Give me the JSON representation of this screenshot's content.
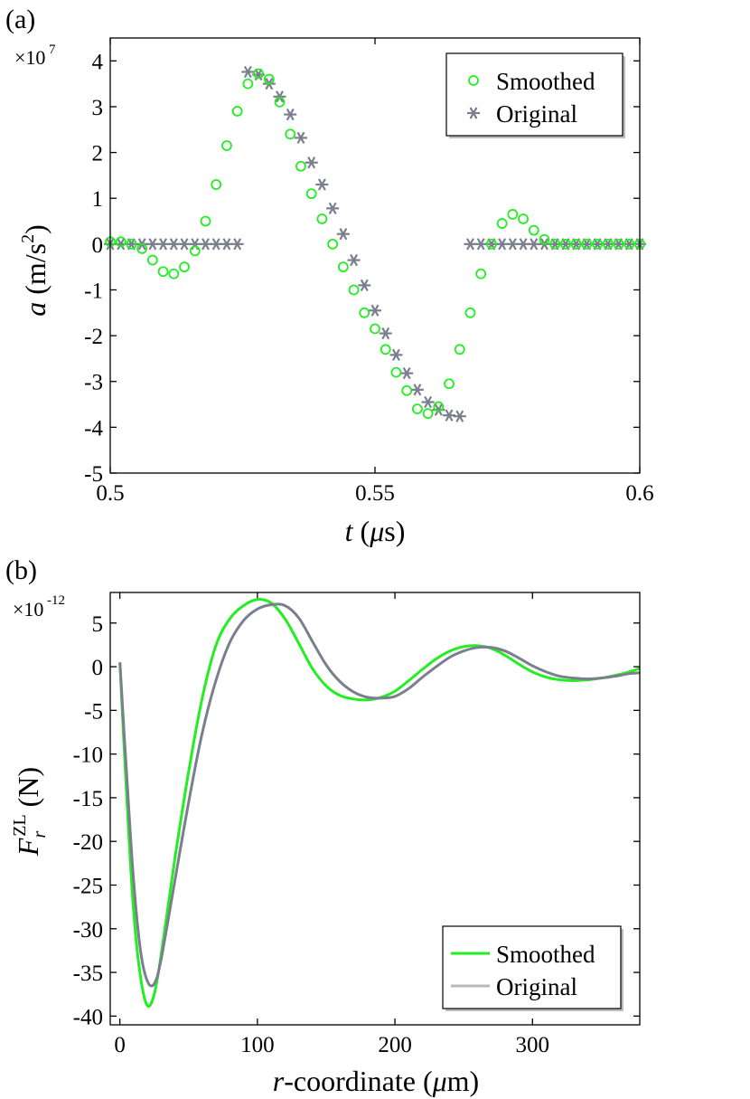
{
  "colors": {
    "smoothed": "#22ee22",
    "original": "#7a7f8e",
    "legend_original_line": "#b8b8b8",
    "axis": "#000000",
    "legend_shadow": "#bdbdbd"
  },
  "chart_data": [
    {
      "panel_label": "(a)",
      "type": "scatter",
      "title": "",
      "exponent_base": "×10",
      "exponent_power": "7",
      "xlabel": {
        "var": "t",
        "rest": " (",
        "mu": "μ",
        "unit": "s)"
      },
      "ylabel": {
        "var": "a",
        "unit_open": " (m/s",
        "power": "2",
        "unit_close": ")"
      },
      "xlim": [
        0.5,
        0.6
      ],
      "ylim": [
        -5,
        4.5
      ],
      "xticks": [
        0.5,
        0.55,
        0.6
      ],
      "xtick_labels": [
        "0.5",
        "0.55",
        "0.6"
      ],
      "yticks": [
        4,
        3,
        2,
        1,
        0,
        -1,
        -2,
        -3,
        -4,
        -5
      ],
      "ytick_labels": [
        "4",
        "3",
        "2",
        "1",
        "0",
        "-1",
        "-2",
        "-3",
        "-4",
        "-5"
      ],
      "legend_position": "top-right",
      "series": [
        {
          "name": "Smoothed",
          "marker": "circle",
          "x": [
            0.5,
            0.502,
            0.504,
            0.506,
            0.508,
            0.51,
            0.512,
            0.514,
            0.516,
            0.518,
            0.52,
            0.522,
            0.524,
            0.526,
            0.528,
            0.53,
            0.532,
            0.534,
            0.536,
            0.538,
            0.54,
            0.542,
            0.544,
            0.546,
            0.548,
            0.55,
            0.552,
            0.554,
            0.556,
            0.558,
            0.56,
            0.562,
            0.564,
            0.566,
            0.568,
            0.57,
            0.572,
            0.574,
            0.576,
            0.578,
            0.58,
            0.582,
            0.584,
            0.586,
            0.588,
            0.59,
            0.592,
            0.594,
            0.596,
            0.598,
            0.6
          ],
          "y": [
            0.05,
            0.05,
            0.0,
            -0.1,
            -0.35,
            -0.6,
            -0.65,
            -0.5,
            -0.15,
            0.5,
            1.3,
            2.15,
            2.9,
            3.5,
            3.72,
            3.6,
            3.1,
            2.4,
            1.7,
            1.1,
            0.55,
            0.0,
            -0.5,
            -1.0,
            -1.5,
            -1.85,
            -2.3,
            -2.8,
            -3.2,
            -3.6,
            -3.7,
            -3.55,
            -3.05,
            -2.3,
            -1.5,
            -0.65,
            0.0,
            0.45,
            0.65,
            0.55,
            0.3,
            0.1,
            0.0,
            0.0,
            0.0,
            0.0,
            0.0,
            0.0,
            0.0,
            0.0,
            0.0
          ]
        },
        {
          "name": "Original",
          "marker": "asterisk",
          "x": [
            0.5,
            0.502,
            0.504,
            0.506,
            0.508,
            0.51,
            0.512,
            0.514,
            0.516,
            0.518,
            0.52,
            0.522,
            0.524,
            0.526,
            0.528,
            0.53,
            0.532,
            0.534,
            0.536,
            0.538,
            0.54,
            0.542,
            0.544,
            0.546,
            0.548,
            0.55,
            0.552,
            0.554,
            0.556,
            0.558,
            0.56,
            0.562,
            0.564,
            0.566,
            0.568,
            0.57,
            0.572,
            0.574,
            0.576,
            0.578,
            0.58,
            0.582,
            0.584,
            0.586,
            0.588,
            0.59,
            0.592,
            0.594,
            0.596,
            0.598,
            0.6
          ],
          "y": [
            0,
            0,
            0,
            0,
            0,
            0,
            0,
            0,
            0,
            0,
            0,
            0,
            0,
            3.76,
            3.7,
            3.5,
            3.22,
            2.83,
            2.32,
            1.78,
            1.3,
            0.78,
            0.22,
            -0.35,
            -0.9,
            -1.45,
            -1.95,
            -2.42,
            -2.82,
            -3.18,
            -3.45,
            -3.62,
            -3.74,
            -3.76,
            0,
            0,
            0,
            0,
            0,
            0,
            0,
            0,
            0,
            0,
            0,
            0,
            0,
            0,
            0,
            0,
            0
          ]
        }
      ]
    },
    {
      "panel_label": "(b)",
      "type": "line",
      "title": "",
      "exponent_base": "×10",
      "exponent_power": "-12",
      "xlabel": {
        "var": "r",
        "rest": "-coordinate (",
        "mu": "μ",
        "unit": "m)"
      },
      "ylabel": {
        "var": "F",
        "sub": "r",
        "sup": "ZL",
        "unit": " (N)"
      },
      "xlim": [
        -7,
        378
      ],
      "ylim": [
        -41,
        8.5
      ],
      "xticks": [
        0,
        100,
        200,
        300
      ],
      "xtick_labels": [
        "0",
        "100",
        "200",
        "300"
      ],
      "yticks": [
        5,
        0,
        -5,
        -10,
        -15,
        -20,
        -25,
        -30,
        -35,
        -40
      ],
      "ytick_labels": [
        "5",
        "0",
        "-5",
        "-10",
        "-15",
        "-20",
        "-25",
        "-30",
        "-35",
        "-40"
      ],
      "legend_position": "bottom-right",
      "series": [
        {
          "name": "Smoothed",
          "x": [
            0,
            5,
            10,
            15,
            20,
            25,
            30,
            40,
            50,
            60,
            70,
            80,
            90,
            100,
            110,
            120,
            130,
            140,
            150,
            160,
            170,
            180,
            190,
            200,
            210,
            220,
            230,
            240,
            250,
            260,
            270,
            280,
            290,
            300,
            310,
            320,
            330,
            340,
            350,
            360,
            370,
            378
          ],
          "y": [
            0.5,
            -15,
            -28,
            -35.5,
            -38.8,
            -37.5,
            -33,
            -22,
            -12,
            -3.5,
            2.5,
            5.5,
            7.0,
            7.7,
            7.3,
            5.5,
            2.7,
            -0.2,
            -2.2,
            -3.3,
            -3.7,
            -3.8,
            -3.5,
            -2.8,
            -1.6,
            -0.3,
            0.9,
            1.8,
            2.3,
            2.4,
            2.1,
            1.3,
            0.3,
            -0.6,
            -1.2,
            -1.5,
            -1.6,
            -1.5,
            -1.3,
            -1.0,
            -0.6,
            -0.2
          ]
        },
        {
          "name": "Original",
          "x": [
            0,
            5,
            10,
            15,
            20,
            25,
            30,
            40,
            50,
            60,
            70,
            80,
            90,
            100,
            110,
            120,
            130,
            140,
            150,
            160,
            170,
            180,
            190,
            200,
            210,
            220,
            230,
            240,
            250,
            260,
            270,
            280,
            290,
            300,
            310,
            320,
            330,
            340,
            350,
            360,
            370,
            378
          ],
          "y": [
            0.5,
            -12.5,
            -24.5,
            -32.5,
            -36.0,
            -36.3,
            -33.5,
            -24.5,
            -15.5,
            -7.5,
            -1.5,
            2.8,
            5.3,
            6.6,
            7.1,
            7.0,
            5.6,
            2.9,
            0.2,
            -1.7,
            -2.9,
            -3.5,
            -3.6,
            -3.4,
            -2.5,
            -1.2,
            0.0,
            1.1,
            1.8,
            2.2,
            2.2,
            1.8,
            1.0,
            0.1,
            -0.6,
            -1.1,
            -1.3,
            -1.4,
            -1.3,
            -1.1,
            -0.8,
            -0.7
          ]
        }
      ]
    }
  ]
}
